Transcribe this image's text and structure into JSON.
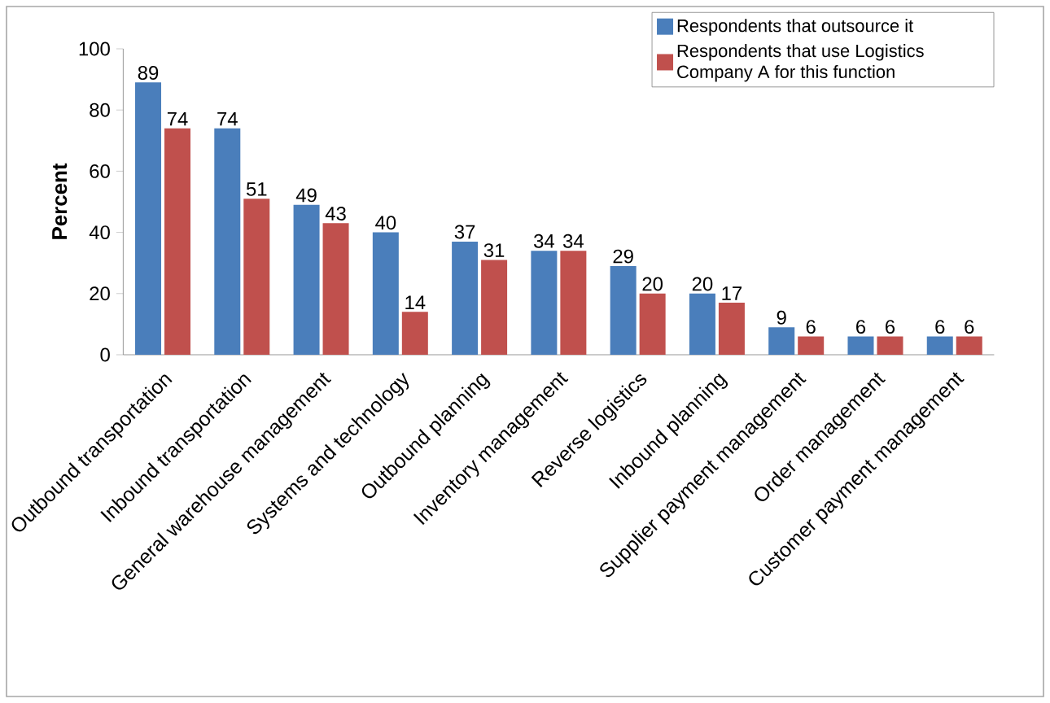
{
  "chart_data": {
    "type": "bar",
    "ylabel": "Percent",
    "categories": [
      "Outbound transportation",
      "Inbound transportation",
      "General warehouse management",
      "Systems and technology",
      "Outbound planning",
      "Inventory management",
      "Reverse logistics",
      "Inbound planning",
      "Supplier payment management",
      "Order management",
      "Customer payment management"
    ],
    "series": [
      {
        "name": "Respondents that outsource it",
        "color": "#4a7ebb",
        "values": [
          89,
          74,
          49,
          40,
          37,
          34,
          29,
          20,
          9,
          6,
          6
        ]
      },
      {
        "name": "Respondents that use Logistics Company A for this function",
        "color": "#c0504d",
        "values": [
          74,
          51,
          43,
          14,
          31,
          34,
          20,
          17,
          6,
          6,
          6
        ]
      }
    ],
    "ylim": [
      0,
      100
    ],
    "yticks": [
      0,
      20,
      40,
      60,
      80,
      100
    ],
    "legend": "top right",
    "data_labels": true
  }
}
